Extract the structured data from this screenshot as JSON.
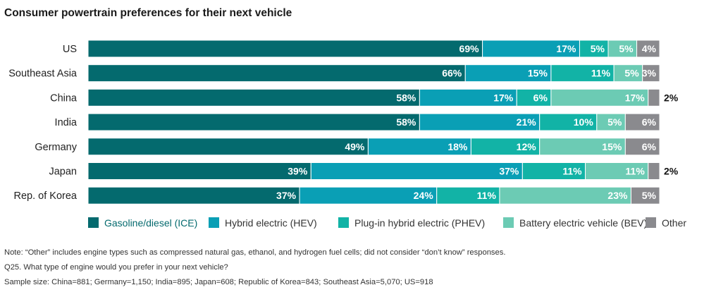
{
  "title": "Consumer powertrain preferences for their next vehicle",
  "chart_data": {
    "type": "bar",
    "orientation": "horizontal",
    "stacked": true,
    "title": "Consumer powertrain preferences for their next vehicle",
    "unit": "%",
    "categories": [
      "US",
      "Southeast Asia",
      "China",
      "India",
      "Germany",
      "Japan",
      "Rep. of Korea"
    ],
    "series": [
      {
        "name": "Gasoline/diesel (ICE)",
        "color": "#046a6e",
        "values": [
          69,
          66,
          58,
          58,
          49,
          39,
          37
        ]
      },
      {
        "name": "Hybrid electric (HEV)",
        "color": "#0a9fb5",
        "values": [
          17,
          15,
          17,
          21,
          18,
          37,
          24
        ]
      },
      {
        "name": "Plug-in hybrid electric (PHEV)",
        "color": "#12b3a6",
        "values": [
          5,
          11,
          6,
          10,
          12,
          11,
          11
        ]
      },
      {
        "name": "Battery electric vehicle (BEV)",
        "color": "#6ccbb4",
        "values": [
          5,
          5,
          17,
          5,
          15,
          11,
          23
        ]
      },
      {
        "name": "Other",
        "color": "#8a8a8e",
        "values": [
          4,
          3,
          2,
          6,
          6,
          2,
          5
        ]
      }
    ],
    "data_labels": [
      [
        "69%",
        "17%",
        "5%",
        "5%",
        "4%"
      ],
      [
        "66%",
        "15%",
        "11%",
        "5%",
        "3%"
      ],
      [
        "58%",
        "17%",
        "6%",
        "17%",
        "2%"
      ],
      [
        "58%",
        "21%",
        "10%",
        "5%",
        "6%"
      ],
      [
        "49%",
        "18%",
        "12%",
        "15%",
        "6%"
      ],
      [
        "39%",
        "37%",
        "11%",
        "11%",
        "2%"
      ],
      [
        "37%",
        "24%",
        "11%",
        "23%",
        "5%"
      ]
    ],
    "xlim": [
      0,
      100
    ],
    "grid": false,
    "legend_position": "bottom"
  },
  "notes": [
    "Note: “Other” includes engine types such as compressed natural gas, ethanol, and hydrogen fuel cells; did not consider “don’t know” responses.",
    "Q25. What type of engine would you prefer in your next vehicle?",
    "Sample size: China=881; Germany=1,150; India=895; Japan=608; Republic of Korea=843; Southeast Asia=5,070; US=918"
  ]
}
